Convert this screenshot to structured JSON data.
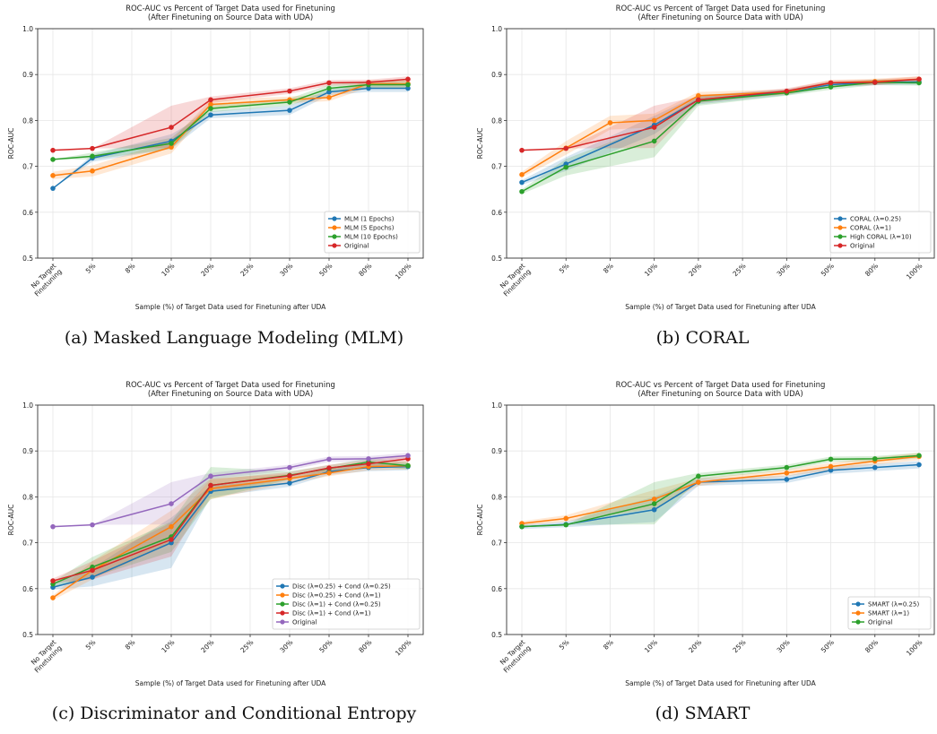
{
  "chart_data": [
    {
      "type": "line",
      "title": "ROC-AUC vs Percent of Target Data used for Finetuning",
      "subtitle": "(After Finetuning on Source Data with UDA)",
      "xlabel": "Sample (%) of Target Data used for Finetuning after UDA",
      "ylabel": "ROC-AUC",
      "ylim": [
        0.5,
        1.0
      ],
      "yticks": [
        "0.5",
        "0.6",
        "0.7",
        "0.8",
        "0.9",
        "1.0"
      ],
      "categories": [
        "No Target\nFinetuning",
        "5%",
        "8%",
        "10%",
        "20%",
        "25%",
        "30%",
        "50%",
        "80%",
        "100%"
      ],
      "grid": true,
      "legend": "bottom-right",
      "caption": "(a) Masked Language Modeling (MLM)",
      "series": [
        {
          "name": "MLM (1 Epochs)",
          "color": "#1f77b4",
          "x": [
            0,
            1,
            3,
            4,
            6,
            7,
            8,
            9
          ],
          "values": [
            0.652,
            0.718,
            0.755,
            0.812,
            0.822,
            0.862,
            0.87,
            0.87
          ],
          "lower": [
            0.652,
            0.71,
            0.738,
            0.805,
            0.812,
            0.855,
            0.862,
            0.862
          ],
          "upper": [
            0.652,
            0.725,
            0.77,
            0.82,
            0.832,
            0.868,
            0.878,
            0.878
          ]
        },
        {
          "name": "MLM (5 Epochs)",
          "color": "#ff7f0e",
          "x": [
            0,
            1,
            3,
            4,
            6,
            7,
            8,
            9
          ],
          "values": [
            0.68,
            0.69,
            0.742,
            0.835,
            0.845,
            0.85,
            0.88,
            0.88
          ],
          "lower": [
            0.672,
            0.678,
            0.728,
            0.825,
            0.838,
            0.842,
            0.872,
            0.872
          ],
          "upper": [
            0.688,
            0.702,
            0.756,
            0.845,
            0.852,
            0.858,
            0.888,
            0.888
          ]
        },
        {
          "name": "MLM (10 Epochs)",
          "color": "#2ca02c",
          "x": [
            0,
            1,
            3,
            4,
            6,
            7,
            8,
            9
          ],
          "values": [
            0.715,
            0.722,
            0.75,
            0.826,
            0.84,
            0.87,
            0.878,
            0.878
          ],
          "lower": [
            0.715,
            0.715,
            0.738,
            0.818,
            0.832,
            0.862,
            0.87,
            0.87
          ],
          "upper": [
            0.715,
            0.73,
            0.762,
            0.835,
            0.848,
            0.878,
            0.886,
            0.886
          ]
        },
        {
          "name": "Original",
          "color": "#d62728",
          "x": [
            0,
            1,
            3,
            4,
            6,
            7,
            8,
            9
          ],
          "values": [
            0.735,
            0.739,
            0.785,
            0.845,
            0.864,
            0.882,
            0.883,
            0.89
          ],
          "lower": [
            0.735,
            0.739,
            0.74,
            0.838,
            0.858,
            0.876,
            0.877,
            0.884
          ],
          "upper": [
            0.735,
            0.739,
            0.832,
            0.852,
            0.87,
            0.888,
            0.889,
            0.896
          ]
        }
      ]
    },
    {
      "type": "line",
      "title": "ROC-AUC vs Percent of Target Data used for Finetuning",
      "subtitle": "(After Finetuning on Source Data with UDA)",
      "xlabel": "Sample (%) of Target Data used for Finetuning after UDA",
      "ylabel": "ROC-AUC",
      "ylim": [
        0.5,
        1.0
      ],
      "yticks": [
        "0.5",
        "0.6",
        "0.7",
        "0.8",
        "0.9",
        "1.0"
      ],
      "categories": [
        "No Target\nFinetuning",
        "5%",
        "8%",
        "10%",
        "20%",
        "25%",
        "30%",
        "50%",
        "80%",
        "100%"
      ],
      "grid": true,
      "legend": "bottom-right",
      "caption": "(b) CORAL",
      "series": [
        {
          "name": "CORAL (λ=0.25)",
          "color": "#1f77b4",
          "x": [
            0,
            1,
            3,
            4,
            6,
            7,
            8,
            9
          ],
          "values": [
            0.665,
            0.705,
            0.79,
            0.845,
            0.862,
            0.878,
            0.883,
            0.884
          ],
          "lower": [
            0.66,
            0.69,
            0.77,
            0.835,
            0.855,
            0.872,
            0.877,
            0.878
          ],
          "upper": [
            0.67,
            0.72,
            0.81,
            0.855,
            0.868,
            0.884,
            0.889,
            0.89
          ]
        },
        {
          "name": "CORAL (λ=1)",
          "color": "#ff7f0e",
          "x": [
            0,
            1,
            2,
            3,
            4,
            6,
            7,
            8,
            9
          ],
          "values": [
            0.682,
            0.74,
            0.795,
            0.8,
            0.854,
            0.862,
            0.882,
            0.885,
            0.89
          ],
          "lower": [
            0.676,
            0.725,
            0.78,
            0.785,
            0.846,
            0.856,
            0.876,
            0.879,
            0.884
          ],
          "upper": [
            0.688,
            0.755,
            0.81,
            0.815,
            0.862,
            0.868,
            0.888,
            0.891,
            0.896
          ]
        },
        {
          "name": "High CORAL (λ=10)",
          "color": "#2ca02c",
          "x": [
            0,
            1,
            3,
            4,
            6,
            7,
            8,
            9
          ],
          "values": [
            0.645,
            0.698,
            0.755,
            0.842,
            0.86,
            0.873,
            0.883,
            0.882
          ],
          "lower": [
            0.64,
            0.68,
            0.72,
            0.832,
            0.854,
            0.867,
            0.877,
            0.876
          ],
          "upper": [
            0.65,
            0.716,
            0.79,
            0.852,
            0.866,
            0.879,
            0.889,
            0.888
          ]
        },
        {
          "name": "Original",
          "color": "#d62728",
          "x": [
            0,
            1,
            3,
            4,
            6,
            7,
            8,
            9
          ],
          "values": [
            0.735,
            0.739,
            0.785,
            0.845,
            0.864,
            0.882,
            0.883,
            0.89
          ],
          "lower": [
            0.735,
            0.739,
            0.74,
            0.838,
            0.858,
            0.876,
            0.877,
            0.884
          ],
          "upper": [
            0.735,
            0.739,
            0.832,
            0.852,
            0.87,
            0.888,
            0.889,
            0.896
          ]
        }
      ]
    },
    {
      "type": "line",
      "title": "ROC-AUC vs Percent of Target Data used for Finetuning",
      "subtitle": "(After Finetuning on Source Data with UDA)",
      "xlabel": "Sample (%) of Target Data used for Finetuning after UDA",
      "ylabel": "ROC-AUC",
      "ylim": [
        0.5,
        1.0
      ],
      "yticks": [
        "0.5",
        "0.6",
        "0.7",
        "0.8",
        "0.9",
        "1.0"
      ],
      "categories": [
        "No Target\nFinetuning",
        "5%",
        "8%",
        "10%",
        "20%",
        "25%",
        "30%",
        "50%",
        "80%",
        "100%"
      ],
      "grid": true,
      "legend": "bottom-right",
      "caption": "(c) Discriminator and Conditional Entropy",
      "series": [
        {
          "name": "Disc (λ=0.25) + Cond (λ=0.25)",
          "color": "#1f77b4",
          "x": [
            0,
            1,
            3,
            4,
            6,
            7,
            8,
            9
          ],
          "values": [
            0.603,
            0.625,
            0.7,
            0.812,
            0.83,
            0.855,
            0.864,
            0.866
          ],
          "lower": [
            0.598,
            0.605,
            0.645,
            0.8,
            0.822,
            0.848,
            0.856,
            0.858
          ],
          "upper": [
            0.608,
            0.645,
            0.755,
            0.824,
            0.838,
            0.862,
            0.872,
            0.874
          ]
        },
        {
          "name": "Disc (λ=0.25) + Cond (λ=1)",
          "color": "#ff7f0e",
          "x": [
            0,
            1,
            3,
            4,
            6,
            7,
            8,
            9
          ],
          "values": [
            0.58,
            0.64,
            0.735,
            0.818,
            0.84,
            0.852,
            0.866,
            0.868
          ],
          "lower": [
            0.575,
            0.62,
            0.7,
            0.795,
            0.83,
            0.845,
            0.858,
            0.86
          ],
          "upper": [
            0.585,
            0.66,
            0.77,
            0.84,
            0.85,
            0.86,
            0.874,
            0.876
          ]
        },
        {
          "name": "Disc (λ=1) + Cond (λ=0.25)",
          "color": "#2ca02c",
          "x": [
            0,
            1,
            3,
            4,
            6,
            7,
            8,
            9
          ],
          "values": [
            0.61,
            0.647,
            0.713,
            0.825,
            0.847,
            0.862,
            0.876,
            0.868
          ],
          "lower": [
            0.605,
            0.625,
            0.68,
            0.795,
            0.838,
            0.855,
            0.868,
            0.86
          ],
          "upper": [
            0.615,
            0.669,
            0.746,
            0.865,
            0.856,
            0.869,
            0.884,
            0.876
          ]
        },
        {
          "name": "Disc (λ=1) + Cond (λ=1)",
          "color": "#d62728",
          "x": [
            0,
            1,
            3,
            4,
            6,
            7,
            8,
            9
          ],
          "values": [
            0.617,
            0.64,
            0.707,
            0.825,
            0.846,
            0.863,
            0.872,
            0.883
          ],
          "lower": [
            0.612,
            0.62,
            0.67,
            0.812,
            0.838,
            0.856,
            0.864,
            0.876
          ],
          "upper": [
            0.622,
            0.66,
            0.744,
            0.838,
            0.854,
            0.87,
            0.88,
            0.89
          ]
        },
        {
          "name": "Original",
          "color": "#9467bd",
          "x": [
            0,
            1,
            3,
            4,
            6,
            7,
            8,
            9
          ],
          "values": [
            0.735,
            0.739,
            0.785,
            0.845,
            0.864,
            0.882,
            0.883,
            0.89
          ],
          "lower": [
            0.735,
            0.739,
            0.74,
            0.838,
            0.858,
            0.876,
            0.877,
            0.884
          ],
          "upper": [
            0.735,
            0.739,
            0.832,
            0.852,
            0.87,
            0.888,
            0.889,
            0.896
          ]
        }
      ]
    },
    {
      "type": "line",
      "title": "ROC-AUC vs Percent of Target Data used for Finetuning",
      "subtitle": "(After Finetuning on Source Data with UDA)",
      "xlabel": "Sample (%) of Target Data used for Finetuning after UDA",
      "ylabel": "ROC-AUC",
      "ylim": [
        0.5,
        1.0
      ],
      "yticks": [
        "0.5",
        "0.6",
        "0.7",
        "0.8",
        "0.9",
        "1.0"
      ],
      "categories": [
        "No Target\nFinetuning",
        "5%",
        "8%",
        "10%",
        "20%",
        "25%",
        "30%",
        "50%",
        "80%",
        "100%"
      ],
      "grid": true,
      "legend": "bottom-right",
      "caption": "(d) SMART",
      "series": [
        {
          "name": "SMART (λ=0.25)",
          "color": "#1f77b4",
          "x": [
            0,
            1,
            3,
            4,
            6,
            7,
            8,
            9
          ],
          "values": [
            0.735,
            0.74,
            0.772,
            0.832,
            0.838,
            0.858,
            0.864,
            0.87
          ],
          "lower": [
            0.73,
            0.734,
            0.745,
            0.824,
            0.83,
            0.85,
            0.856,
            0.862
          ],
          "upper": [
            0.74,
            0.746,
            0.8,
            0.84,
            0.846,
            0.866,
            0.872,
            0.878
          ]
        },
        {
          "name": "SMART (λ=1)",
          "color": "#ff7f0e",
          "x": [
            0,
            1,
            3,
            4,
            6,
            7,
            8,
            9
          ],
          "values": [
            0.742,
            0.753,
            0.795,
            0.832,
            0.852,
            0.866,
            0.878,
            0.888
          ],
          "lower": [
            0.737,
            0.746,
            0.775,
            0.824,
            0.845,
            0.858,
            0.87,
            0.88
          ],
          "upper": [
            0.747,
            0.76,
            0.815,
            0.84,
            0.859,
            0.874,
            0.886,
            0.896
          ]
        },
        {
          "name": "Original",
          "color": "#2ca02c",
          "x": [
            0,
            1,
            3,
            4,
            6,
            7,
            8,
            9
          ],
          "values": [
            0.735,
            0.739,
            0.785,
            0.845,
            0.864,
            0.882,
            0.883,
            0.89
          ],
          "lower": [
            0.735,
            0.739,
            0.74,
            0.838,
            0.858,
            0.876,
            0.877,
            0.884
          ],
          "upper": [
            0.735,
            0.739,
            0.832,
            0.852,
            0.87,
            0.888,
            0.889,
            0.896
          ]
        }
      ]
    }
  ]
}
